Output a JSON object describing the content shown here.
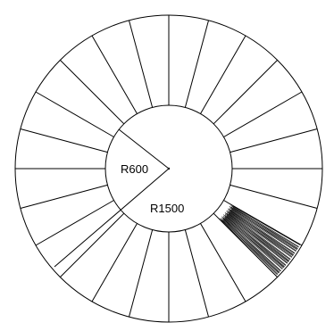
{
  "diagram": {
    "labels": {
      "inner_radius": "R600",
      "outer_radius": "R1500"
    },
    "segment_count": 24,
    "stroke_color": "#000000",
    "background_color": "#ffffff"
  }
}
